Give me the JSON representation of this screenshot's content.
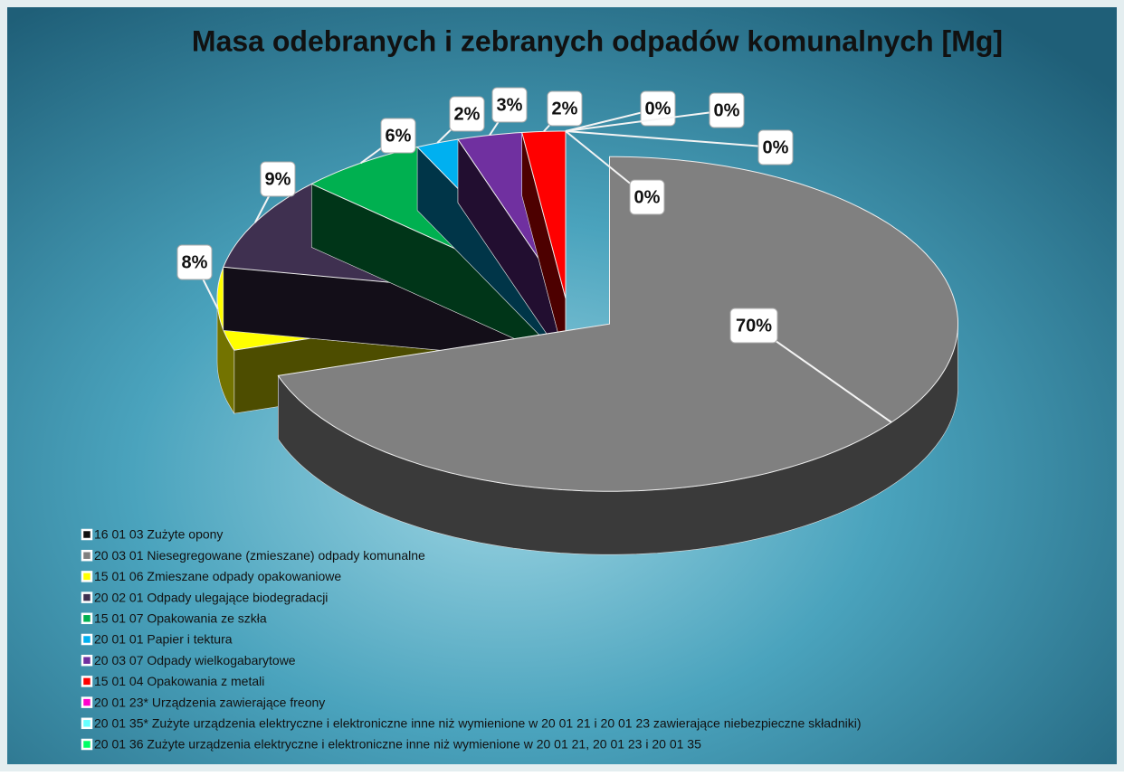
{
  "chart_data": {
    "type": "pie3d",
    "title": "Masa odebranych i zebranych odpadów komunalnych [Mg]",
    "categories": [
      "16 01 03 Zużyte opony",
      "20 03 01 Niesegregowane (zmieszane) odpady komunalne",
      "15 01 06 Zmieszane odpady opakowaniowe",
      "20 02 01 Odpady ulegające biodegradacji",
      "15 01 07 Opakowania ze szkła",
      "20 01 01 Papier i tektura",
      "20 03 07 Odpady wielkogabarytowe",
      "15 01 04 Opakowania z metali",
      "20 01 23* Urządzenia zawierające freony",
      "20 01 35* Zużyte urządzenia elektryczne i elektroniczne inne niż wymienione w 20 01 21 i 20 01 23 zawierające niebezpieczne składniki)",
      "20 01 36 Zużyte urządzenia elektryczne i elektroniczne inne niż wymienione w 20 01 21, 20 01 23 i 20 01 35"
    ],
    "values": [
      0,
      70,
      8,
      9,
      6,
      2,
      3,
      2,
      0,
      0,
      0
    ],
    "value_labels": [
      "0%",
      "70%",
      "8%",
      "9%",
      "6%",
      "2%",
      "3%",
      "2%",
      "0%",
      "0%",
      "0%"
    ],
    "colors": [
      "#111111",
      "#808080",
      "#ffff00",
      "#3f3050",
      "#00b050",
      "#00b0f0",
      "#7030a0",
      "#ff0000",
      "#ff00cc",
      "#66ffff",
      "#00ff66"
    ],
    "legend": "bottom-left"
  }
}
